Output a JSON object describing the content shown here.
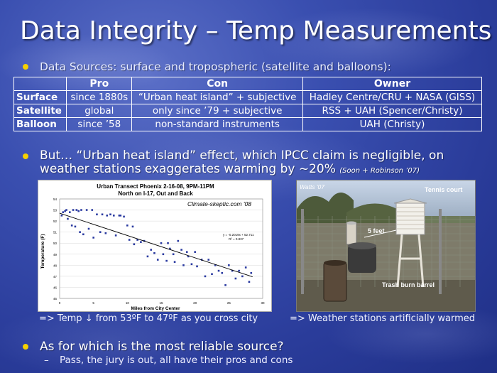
{
  "title": "Data Integrity – Temp Measurements",
  "bullet1": "Data Sources: surface and tropospheric (satellite and balloons):",
  "table": {
    "headers": [
      "",
      "Pro",
      "Con",
      "Owner"
    ],
    "rows": [
      {
        "label": "Surface",
        "pro": "since 1880s",
        "con": "“Urban heat island” + subjective",
        "owner": "Hadley Centre/CRU + NASA (GISS)"
      },
      {
        "label": "Satellite",
        "pro": "global",
        "con": "only since ’79 + subjective",
        "owner": "RSS + UAH (Spencer/Christy)"
      },
      {
        "label": "Balloon",
        "pro": "since ’58",
        "con": "non-standard instruments",
        "owner": "UAH (Christy)"
      }
    ]
  },
  "bullet2": "But… “Urban heat island” effect, which IPCC claim is negligible, on weather stations exaggerates warming by ~20%",
  "bullet2_cite": "(Soon + Robinson ’07)",
  "chart_data": {
    "type": "scatter",
    "title": "Urban Transect Phoenix 2-16-08, 9PM-11PM",
    "subtitle": "North on I-17, Out and Back",
    "watermark": "Climate-skeptic.com '08",
    "xlabel": "Miles from City Center",
    "ylabel": "Temperature (F)",
    "xlim": [
      0,
      30
    ],
    "ylim": [
      45,
      54
    ],
    "xticks": [
      0,
      5,
      10,
      15,
      20,
      25,
      30
    ],
    "yticks": [
      45,
      46,
      47,
      48,
      49,
      50,
      51,
      52,
      53,
      54
    ],
    "trend_label": "y = -0.2019x + 52.711",
    "r2_label": "R² = 0.837",
    "trend": {
      "slope": -0.2019,
      "intercept": 52.711
    },
    "points": [
      [
        0.3,
        52.5
      ],
      [
        0.5,
        52.8
      ],
      [
        0.8,
        52.9
      ],
      [
        1,
        53
      ],
      [
        1.2,
        52.2
      ],
      [
        1.5,
        52.8
      ],
      [
        1.8,
        51.6
      ],
      [
        2,
        53
      ],
      [
        2.3,
        51.5
      ],
      [
        2.5,
        53
      ],
      [
        2.8,
        52.9
      ],
      [
        3,
        51
      ],
      [
        3.2,
        53
      ],
      [
        3.5,
        50.8
      ],
      [
        4,
        53
      ],
      [
        4.3,
        51.3
      ],
      [
        4.8,
        53
      ],
      [
        5,
        50.5
      ],
      [
        5.5,
        52.6
      ],
      [
        6,
        51
      ],
      [
        6.3,
        52.6
      ],
      [
        6.8,
        50.9
      ],
      [
        7,
        52.5
      ],
      [
        7.5,
        52.6
      ],
      [
        8,
        52.5
      ],
      [
        8.3,
        50.7
      ],
      [
        8.8,
        52.5
      ],
      [
        9,
        52.5
      ],
      [
        9.5,
        52.4
      ],
      [
        10,
        51.6
      ],
      [
        10.3,
        50.3
      ],
      [
        10.8,
        51.5
      ],
      [
        11,
        49.9
      ],
      [
        11.5,
        50.3
      ],
      [
        12,
        50.1
      ],
      [
        12.5,
        50.2
      ],
      [
        13,
        48.8
      ],
      [
        13.5,
        49.4
      ],
      [
        14,
        49.1
      ],
      [
        14.5,
        48.5
      ],
      [
        15,
        50
      ],
      [
        15.3,
        49
      ],
      [
        15.8,
        48.4
      ],
      [
        16,
        50
      ],
      [
        16.3,
        49.5
      ],
      [
        16.8,
        49
      ],
      [
        17,
        48.3
      ],
      [
        17.5,
        50.2
      ],
      [
        18,
        49.4
      ],
      [
        18.3,
        48
      ],
      [
        18.8,
        49.2
      ],
      [
        19,
        48.8
      ],
      [
        19.5,
        48.1
      ],
      [
        20,
        49.2
      ],
      [
        20.3,
        47.9
      ],
      [
        21,
        48.5
      ],
      [
        21.5,
        47
      ],
      [
        22,
        48.5
      ],
      [
        22.5,
        47.2
      ],
      [
        23,
        48
      ],
      [
        23.5,
        47.5
      ],
      [
        24,
        47.3
      ],
      [
        24.5,
        46.2
      ],
      [
        25,
        48
      ],
      [
        25.5,
        47.5
      ],
      [
        26,
        46.8
      ],
      [
        26.5,
        47.5
      ],
      [
        27,
        47
      ],
      [
        27.5,
        47.8
      ],
      [
        28,
        46.5
      ],
      [
        28.3,
        47.3
      ]
    ]
  },
  "photo": {
    "watermark": "Watts '07",
    "labels": [
      "Tennis court",
      "5 feet",
      "Trash burn barrel"
    ]
  },
  "caption1": "=> Temp ↓ from 53ºF to 47ºF as you cross city",
  "caption2": "=> Weather stations artificially warmed",
  "bullet3": "As for which is the most reliable source?",
  "sub_dash": "–",
  "sub_bullet": "Pass, the jury is out, all have their pros and cons",
  "colors": {
    "bullet": "#f5d000",
    "background": "#2a3c9a"
  }
}
